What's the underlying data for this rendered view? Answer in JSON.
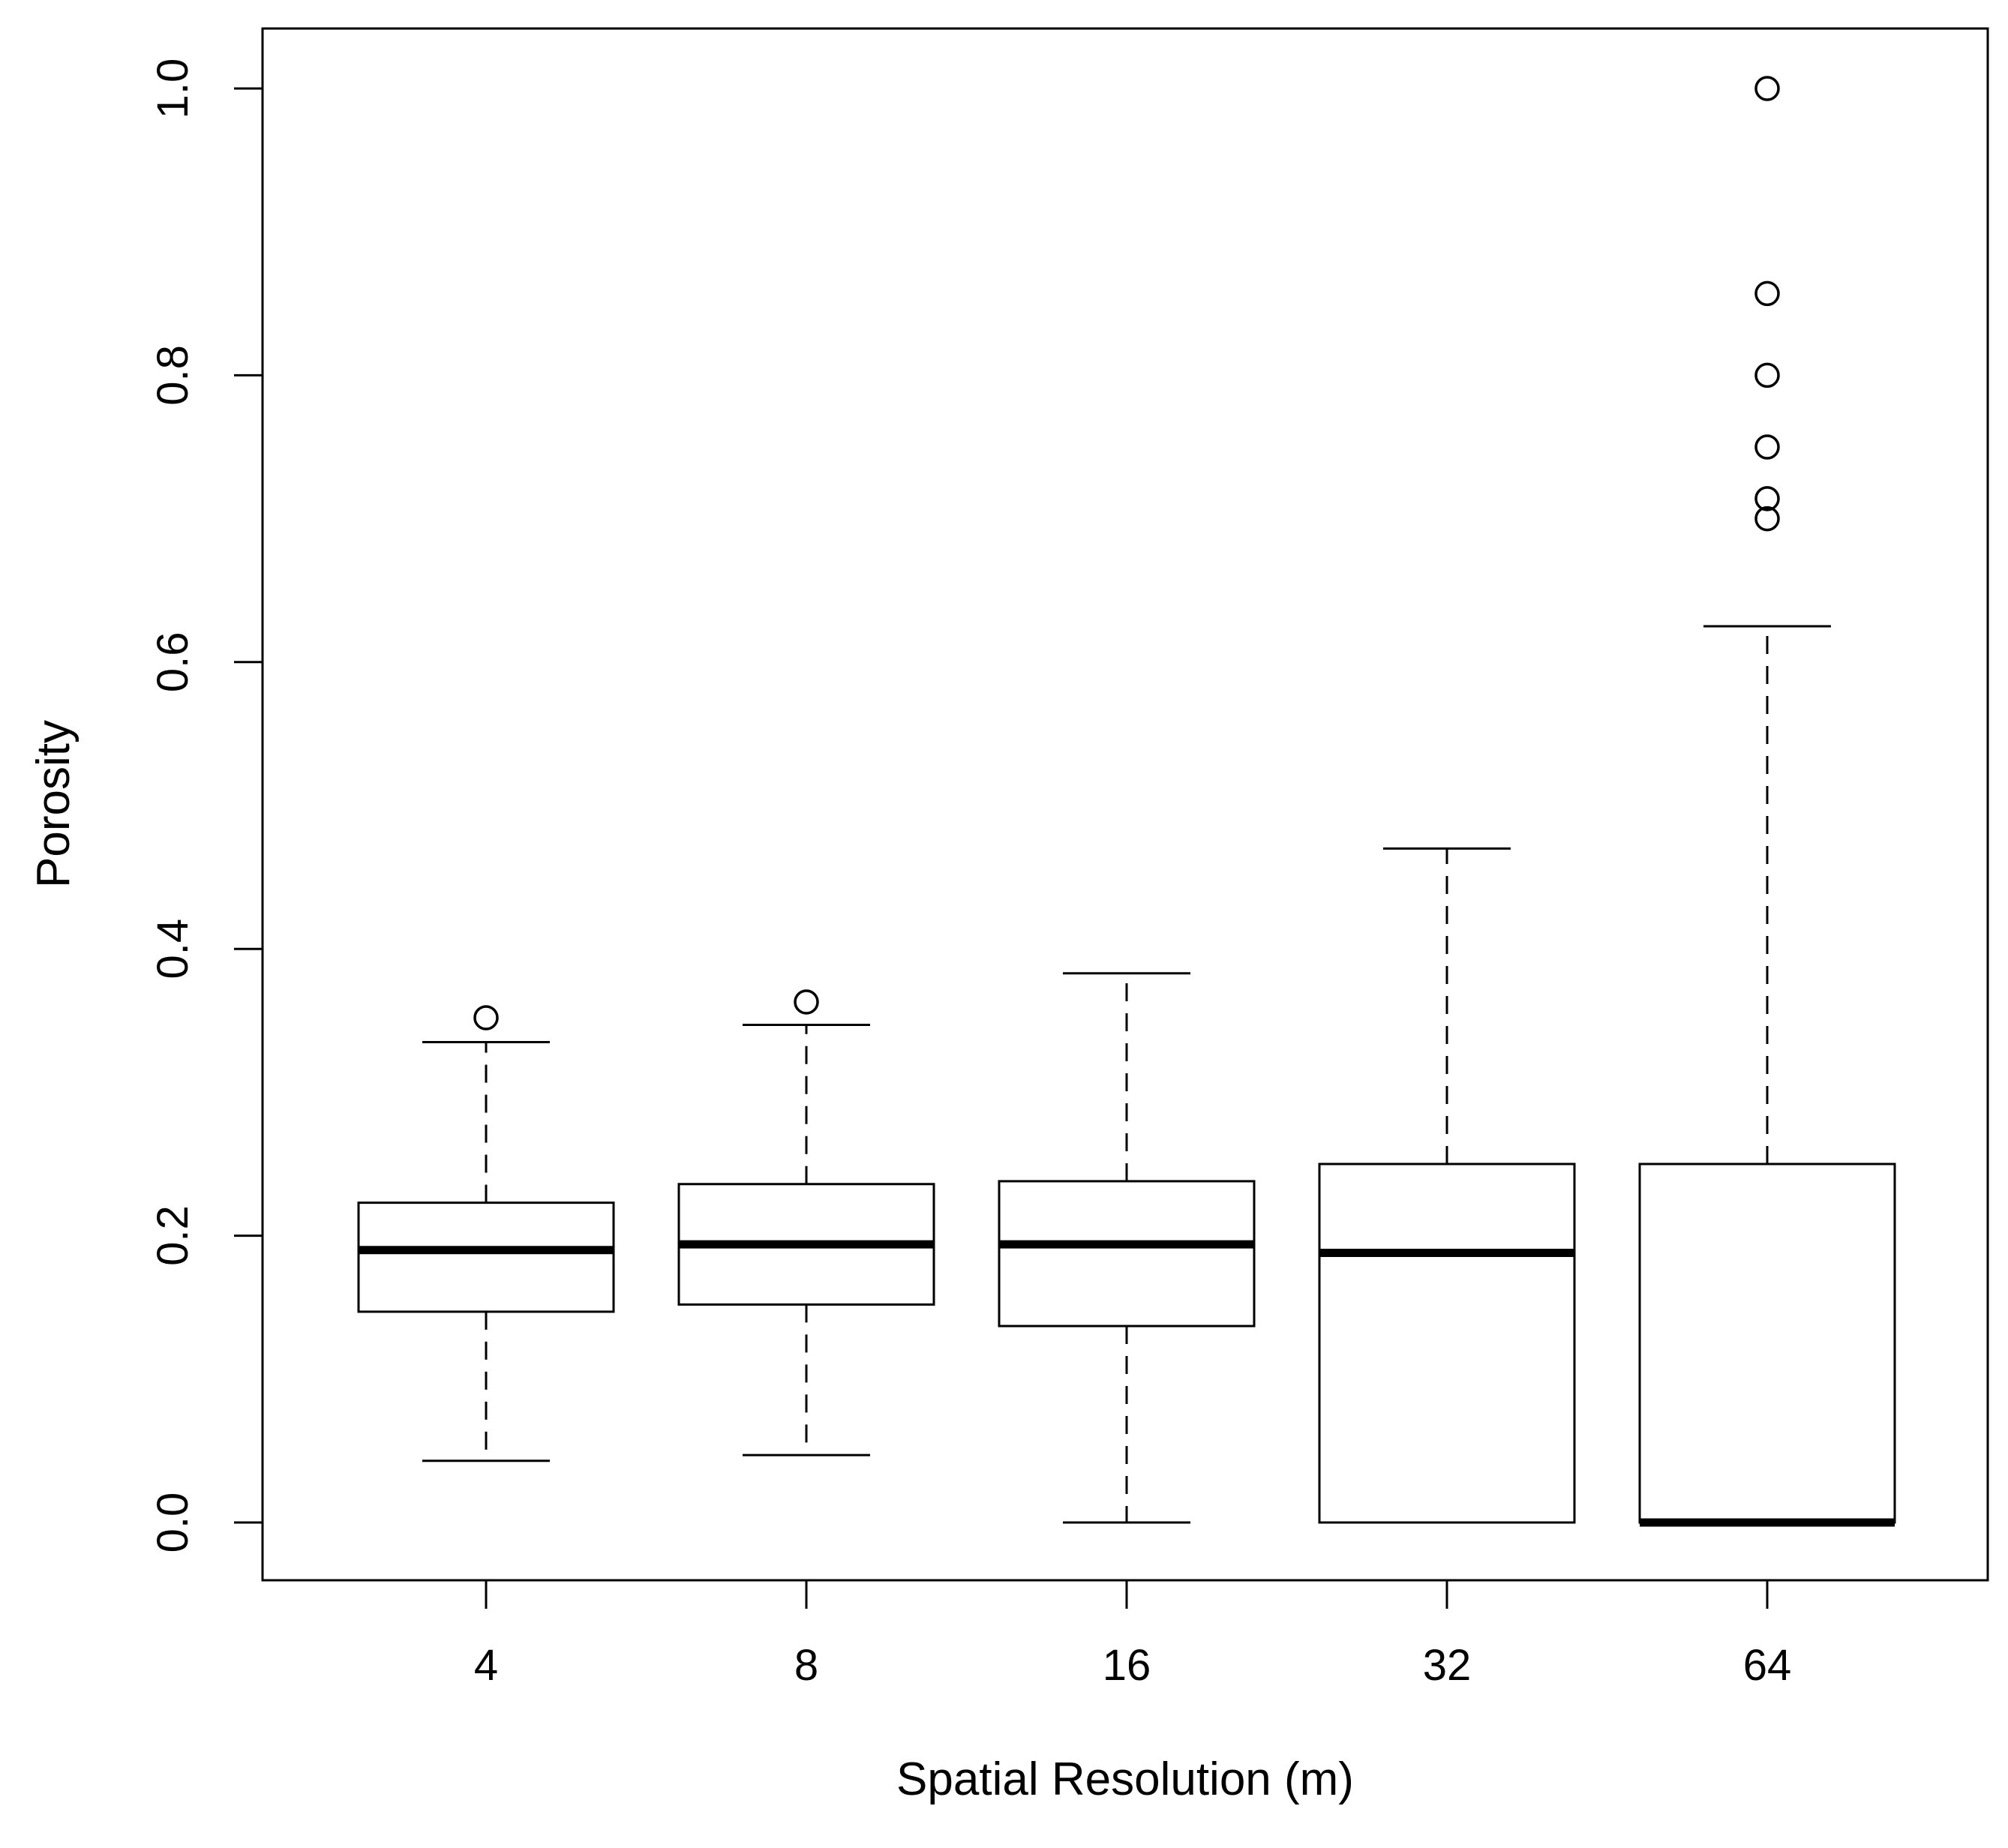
{
  "chart_data": {
    "type": "boxplot",
    "title": "",
    "xlabel": "Spatial Resolution (m)",
    "ylabel": "Porosity",
    "categories": [
      "4",
      "8",
      "16",
      "32",
      "64"
    ],
    "ylim": [
      -0.04,
      1.04
    ],
    "yticks": [
      0.0,
      0.2,
      0.4,
      0.6,
      0.8,
      1.0
    ],
    "ytick_labels": [
      "0.0",
      "0.2",
      "0.4",
      "0.6",
      "0.8",
      "1.0"
    ],
    "grid": false,
    "boxes": [
      {
        "category": "4",
        "whisker_low": 0.043,
        "q1": 0.147,
        "median": 0.19,
        "q3": 0.223,
        "whisker_high": 0.335,
        "outliers": [
          0.352
        ]
      },
      {
        "category": "8",
        "whisker_low": 0.047,
        "q1": 0.152,
        "median": 0.194,
        "q3": 0.236,
        "whisker_high": 0.347,
        "outliers": [
          0.363
        ]
      },
      {
        "category": "16",
        "whisker_low": 0.0,
        "q1": 0.137,
        "median": 0.194,
        "q3": 0.238,
        "whisker_high": 0.383,
        "outliers": []
      },
      {
        "category": "32",
        "whisker_low": 0.0,
        "q1": 0.0,
        "median": 0.188,
        "q3": 0.25,
        "whisker_high": 0.47,
        "outliers": []
      },
      {
        "category": "64",
        "whisker_low": 0.0,
        "q1": 0.0,
        "median": 0.0,
        "q3": 0.25,
        "whisker_high": 0.625,
        "outliers": [
          0.7,
          0.714,
          0.75,
          0.8,
          0.857,
          1.0
        ]
      }
    ]
  }
}
